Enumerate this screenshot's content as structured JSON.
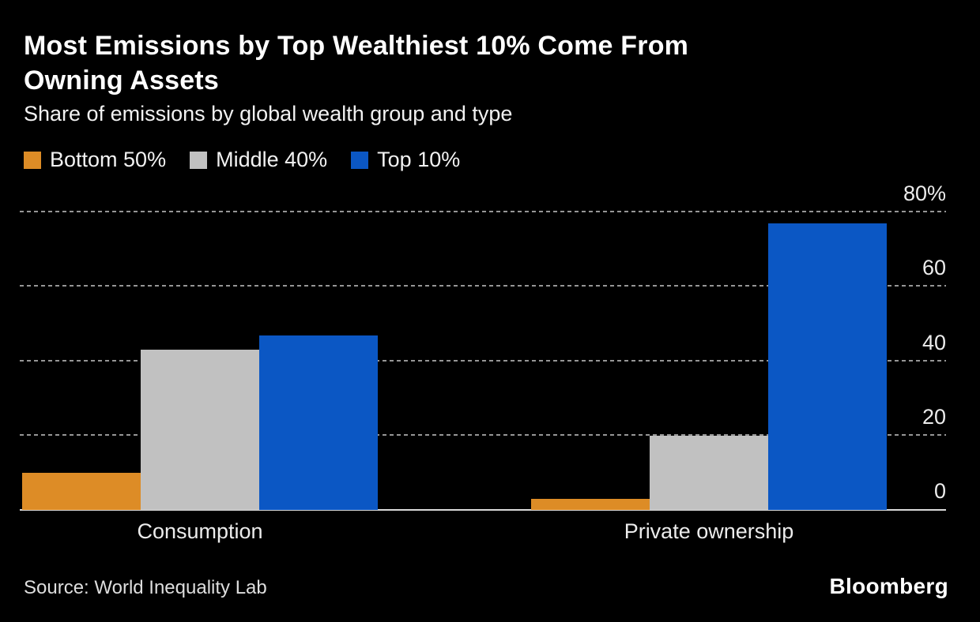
{
  "header": {
    "title_line1": "Most Emissions by Top Wealthiest 10% Come From",
    "title_line2": "Owning Assets",
    "subtitle": "Share of emissions by global wealth group and type"
  },
  "chart_data": {
    "type": "bar",
    "categories": [
      "Consumption",
      "Private ownership"
    ],
    "series": [
      {
        "name": "Bottom 50%",
        "color": "#DD8C26",
        "values": [
          10,
          3
        ]
      },
      {
        "name": "Middle 40%",
        "color": "#C1C1C1",
        "values": [
          43,
          20
        ]
      },
      {
        "name": "Top 10%",
        "color": "#0B57C4",
        "values": [
          47,
          77
        ]
      }
    ],
    "unit": "%",
    "title": "Most Emissions by Top Wealthiest 10% Come From Owning Assets",
    "subtitle": "Share of emissions by global wealth group and type",
    "xlabel": "",
    "ylabel": "",
    "ylim": [
      0,
      84
    ],
    "y_ticks": [
      0,
      20,
      40,
      60,
      80
    ],
    "y_tick_labels": [
      "0",
      "20",
      "40",
      "60",
      "80%"
    ],
    "grid": "horizontal-dotted",
    "legend_position": "top-left",
    "background": "#000000"
  },
  "footer": {
    "source": "Source: World Inequality Lab",
    "brand": "Bloomberg"
  }
}
